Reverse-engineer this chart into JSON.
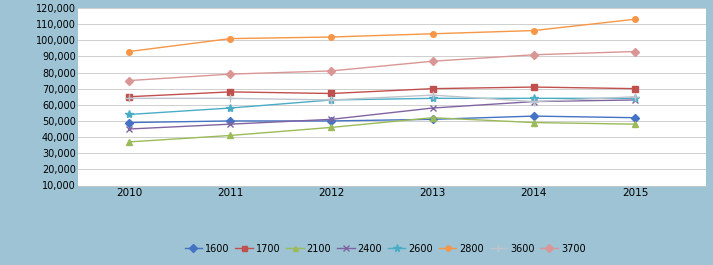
{
  "years": [
    2010,
    2011,
    2012,
    2013,
    2014,
    2015
  ],
  "series": {
    "1600": [
      49000,
      50000,
      50000,
      51000,
      53000,
      52000
    ],
    "1700": [
      65000,
      68000,
      67000,
      70000,
      71000,
      70000
    ],
    "2100": [
      37000,
      41000,
      46000,
      52000,
      49000,
      48000
    ],
    "2400": [
      45000,
      48000,
      51000,
      58000,
      62000,
      63000
    ],
    "2600": [
      54000,
      58000,
      63000,
      64000,
      64000,
      64000
    ],
    "2800": [
      93000,
      101000,
      102000,
      104000,
      106000,
      113000
    ],
    "3600": [
      64000,
      64000,
      63000,
      66000,
      62000,
      65000
    ],
    "3700": [
      75000,
      79000,
      81000,
      87000,
      91000,
      93000
    ]
  },
  "colors": {
    "1600": "#4472C4",
    "1700": "#C0504D",
    "2100": "#9BBB59",
    "2400": "#8064A2",
    "2600": "#4BACC6",
    "2800": "#F79646",
    "3600": "#BFC4CC",
    "3700": "#D99694"
  },
  "markers": {
    "1600": "D",
    "1700": "s",
    "2100": "^",
    "2400": "x",
    "2600": "*",
    "2800": "o",
    "3600": "+",
    "3700": "D"
  },
  "ylim": [
    10000,
    120000
  ],
  "yticks": [
    10000,
    20000,
    30000,
    40000,
    50000,
    60000,
    70000,
    80000,
    90000,
    100000,
    110000,
    120000
  ],
  "background_color": "#9DC3D4",
  "plot_background": "#FFFFFF",
  "grid_color": "#C8C8C8"
}
